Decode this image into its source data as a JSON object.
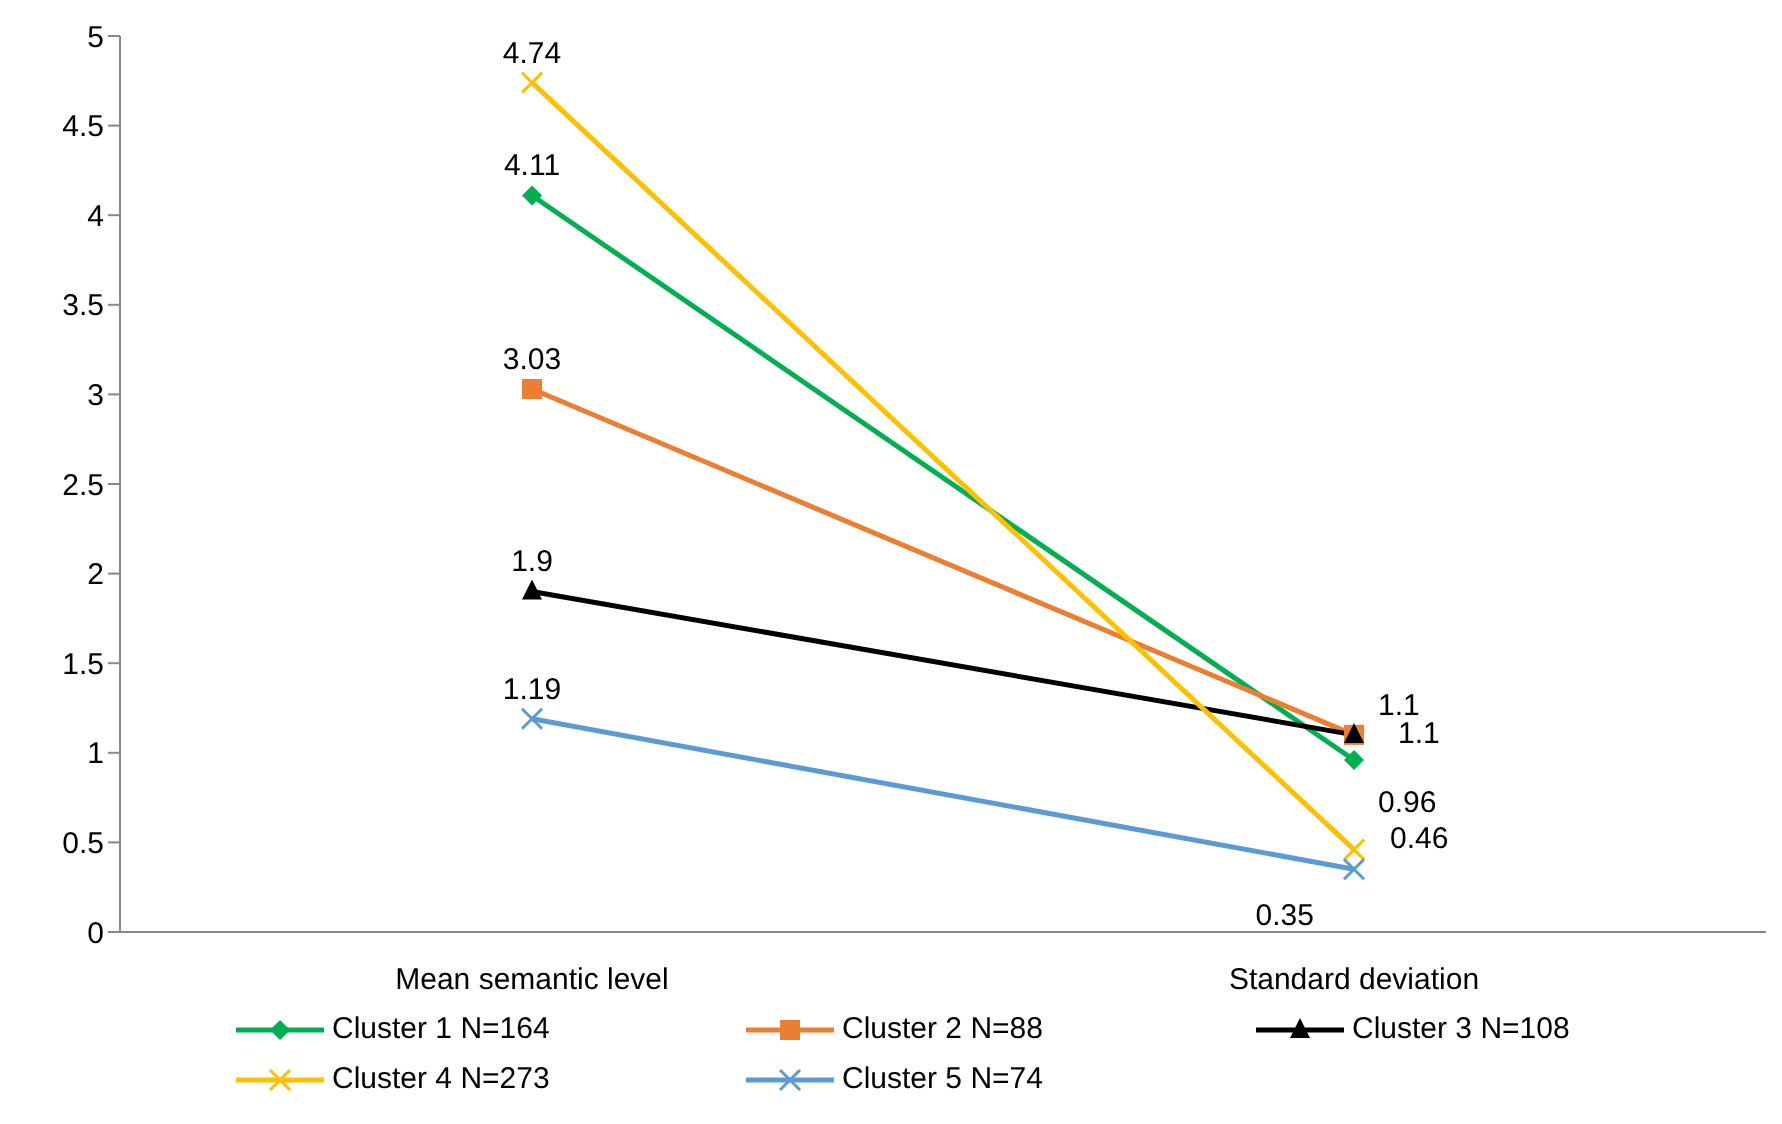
{
  "chart_data": {
    "type": "line",
    "categories": [
      "Mean semantic level",
      "Standard deviation"
    ],
    "series": [
      {
        "name": "Cluster 1 N=164",
        "color": "#00b050",
        "marker": "diamond",
        "values": [
          4.11,
          0.96
        ]
      },
      {
        "name": "Cluster 2 N=88",
        "color": "#ed7d31",
        "marker": "square",
        "values": [
          3.03,
          1.1
        ]
      },
      {
        "name": "Cluster 3 N=108",
        "color": "#000000",
        "marker": "triangle",
        "values": [
          1.9,
          1.1
        ]
      },
      {
        "name": "Cluster 4 N=273",
        "color": "#ffc000",
        "marker": "cross",
        "values": [
          4.74,
          0.46
        ]
      },
      {
        "name": "Cluster 5 N=74",
        "color": "#5b9bd5",
        "marker": "cross",
        "values": [
          1.19,
          0.35
        ]
      }
    ],
    "ylim": [
      0,
      5
    ],
    "yticks": [
      0,
      0.5,
      1,
      1.5,
      2,
      2.5,
      3,
      3.5,
      4,
      4.5,
      5
    ],
    "grid": false,
    "legend": "bottom",
    "data_labels": true
  }
}
